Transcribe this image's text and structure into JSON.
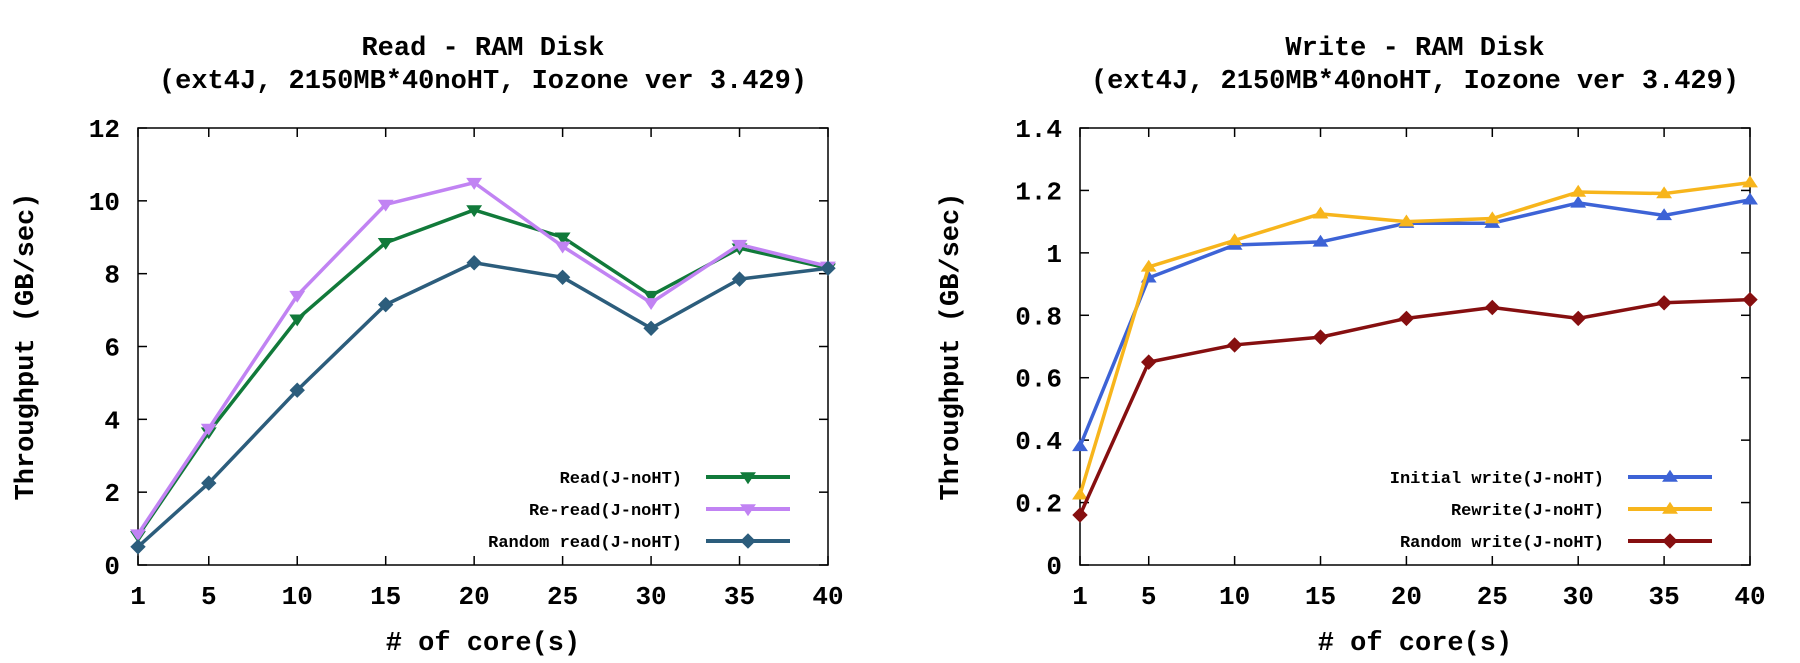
{
  "chart_data": [
    {
      "type": "line",
      "title": "Read - RAM Disk",
      "subtitle": "(ext4J, 2150MB*40noHT, Iozone ver 3.429)",
      "xlabel": "# of core(s)",
      "ylabel": "Throughput (GB/sec)",
      "x": [
        1,
        5,
        10,
        15,
        20,
        25,
        30,
        35,
        40
      ],
      "xticks": [
        "1",
        "5",
        "10",
        "15",
        "20",
        "25",
        "30",
        "35",
        "40"
      ],
      "yticks": [
        "0",
        "2",
        "4",
        "6",
        "8",
        "10",
        "12"
      ],
      "ylim": [
        0,
        12
      ],
      "grid": false,
      "legend_position": "bottom-right",
      "series": [
        {
          "name": "Read(J-noHT)",
          "color": "#117a3a",
          "marker": "triangle-down",
          "values": [
            0.8,
            3.65,
            6.75,
            8.85,
            9.75,
            9.0,
            7.4,
            8.7,
            8.15
          ]
        },
        {
          "name": "Re-read(J-noHT)",
          "color": "#c183f3",
          "marker": "triangle-down",
          "values": [
            0.85,
            3.75,
            7.4,
            9.9,
            10.5,
            8.75,
            7.2,
            8.8,
            8.2
          ]
        },
        {
          "name": "Random read(J-noHT)",
          "color": "#2c5d7c",
          "marker": "diamond",
          "values": [
            0.5,
            2.25,
            4.8,
            7.15,
            8.3,
            7.9,
            6.5,
            7.85,
            8.15
          ]
        }
      ]
    },
    {
      "type": "line",
      "title": "Write - RAM Disk",
      "subtitle": "(ext4J, 2150MB*40noHT, Iozone ver 3.429)",
      "xlabel": "# of core(s)",
      "ylabel": "Throughput (GB/sec)",
      "x": [
        1,
        5,
        10,
        15,
        20,
        25,
        30,
        35,
        40
      ],
      "xticks": [
        "1",
        "5",
        "10",
        "15",
        "20",
        "25",
        "30",
        "35",
        "40"
      ],
      "yticks": [
        "0",
        "0.2",
        "0.4",
        "0.6",
        "0.8",
        "1",
        "1.2",
        "1.4"
      ],
      "ylim": [
        0,
        1.4
      ],
      "grid": false,
      "legend_position": "bottom-right",
      "series": [
        {
          "name": "Initial write(J-noHT)",
          "color": "#3d63d6",
          "marker": "triangle-up",
          "values": [
            0.38,
            0.92,
            1.025,
            1.035,
            1.095,
            1.095,
            1.16,
            1.12,
            1.17
          ]
        },
        {
          "name": "Rewrite(J-noHT)",
          "color": "#f7b51c",
          "marker": "triangle-up",
          "values": [
            0.225,
            0.955,
            1.04,
            1.125,
            1.1,
            1.11,
            1.195,
            1.19,
            1.225
          ]
        },
        {
          "name": "Random write(J-noHT)",
          "color": "#860f10",
          "marker": "diamond",
          "values": [
            0.16,
            0.65,
            0.705,
            0.73,
            0.79,
            0.825,
            0.79,
            0.84,
            0.85
          ]
        }
      ]
    }
  ]
}
